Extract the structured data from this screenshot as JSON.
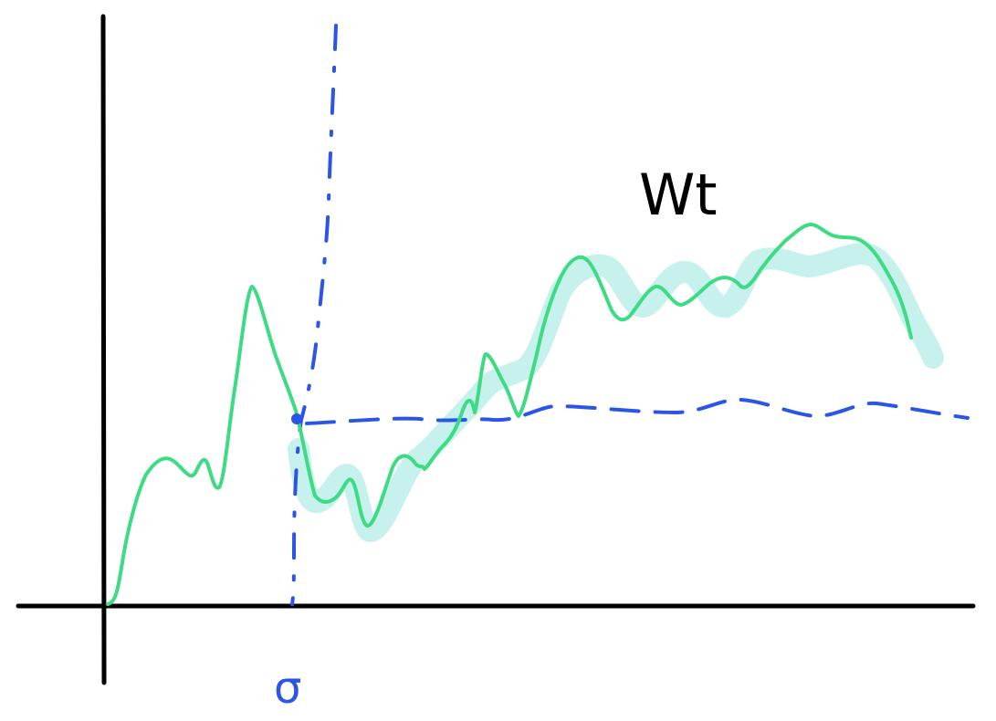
{
  "labels": {
    "process": "Wt",
    "tau": "σ"
  },
  "colors": {
    "axes": "#000000",
    "path": "#3ddc84",
    "highlight": "#c6f1ec",
    "dashed": "#2a55e6"
  }
}
